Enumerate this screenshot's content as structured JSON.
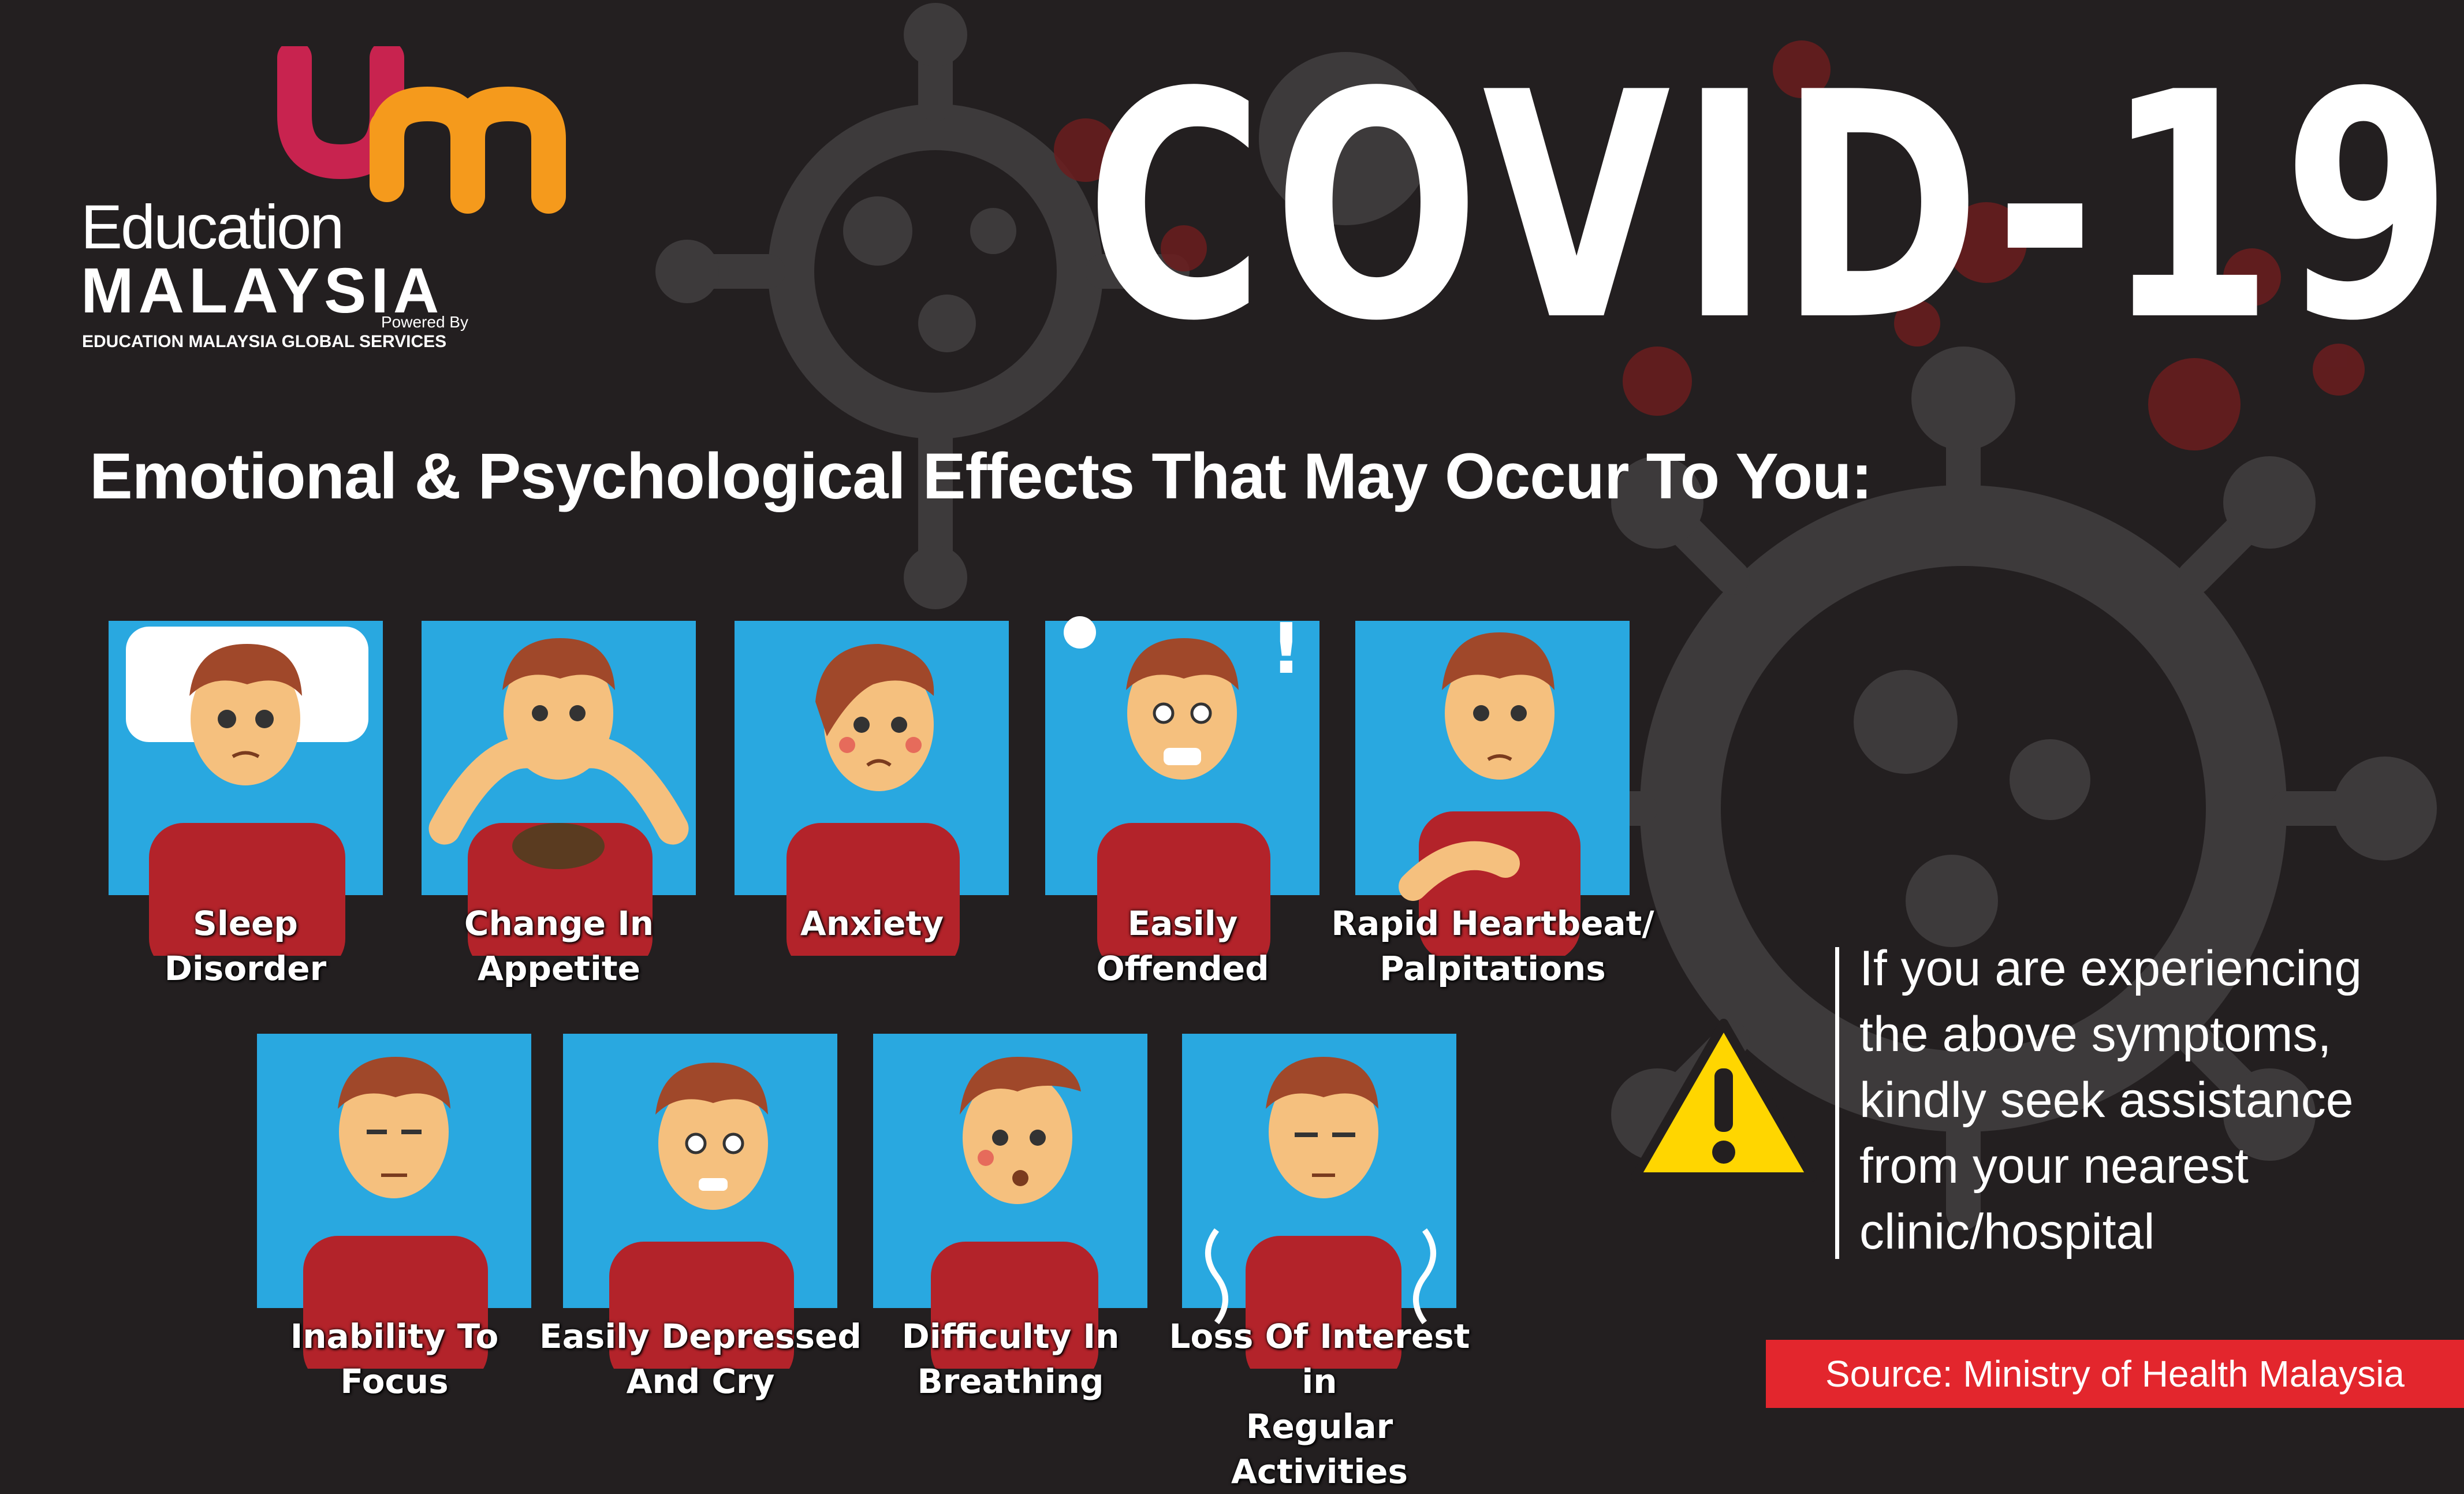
{
  "logo": {
    "line1": "Education",
    "line2": "MALAYSIA",
    "powered_by": "Powered By",
    "services": "EDUCATION MALAYSIA GLOBAL SERVICES"
  },
  "title": "COVID-19",
  "subtitle": "Emotional & Psychological Effects That May Occur To You:",
  "symptoms": [
    {
      "line1": "Sleep",
      "line2": "Disorder"
    },
    {
      "line1": "Change In",
      "line2": "Appetite"
    },
    {
      "line1": "Anxiety",
      "line2": ""
    },
    {
      "line1": "Easily",
      "line2": "Offended"
    },
    {
      "line1": "Rapid Heartbeat/",
      "line2": "Palpitations"
    },
    {
      "line1": "Inability To",
      "line2": "Focus"
    },
    {
      "line1": "Easily Depressed",
      "line2": "And Cry"
    },
    {
      "line1": "Difficulty In",
      "line2": "Breathing"
    },
    {
      "line1": "Loss Of Interest in",
      "line2": "Regular Activities"
    }
  ],
  "advice": {
    "line1": "If you are experiencing",
    "line2": "the above symptoms,",
    "line3": "kindly seek assistance",
    "line4": "from your nearest",
    "line5": "clinic/hospital"
  },
  "source": "Source: Ministry of Health Malaysia",
  "colors": {
    "background": "#231f20",
    "card": "#29a8e0",
    "shirt": "#b3232a",
    "skin": "#f5c07e",
    "hair": "#a0482a",
    "source_bar": "#e3262d",
    "warning": "#ffd600",
    "logo_red": "#c8234f",
    "logo_orange": "#f59a1c"
  }
}
